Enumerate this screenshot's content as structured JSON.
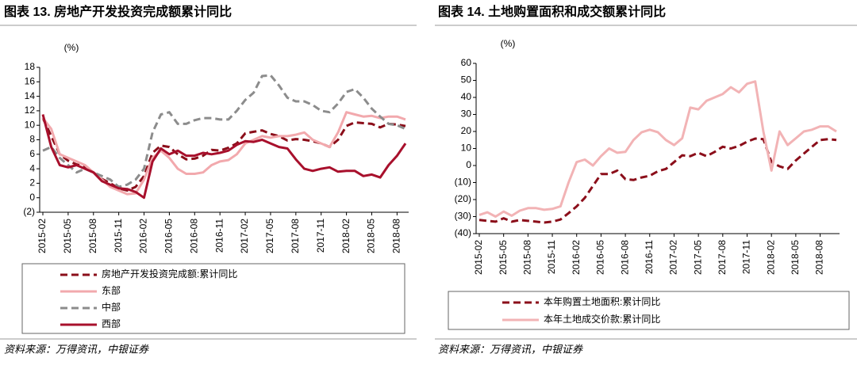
{
  "chart_data": [
    {
      "type": "line",
      "title": "图表 13. 房地产开发投资完成额累计同比",
      "ylabel": "(%)",
      "source": "资料来源：万得资讯，中银证券",
      "categories": [
        "2015-02",
        null,
        null,
        "2015-05",
        null,
        null,
        "2015-08",
        null,
        null,
        "2015-11",
        null,
        null,
        "2016-02",
        null,
        null,
        "2016-05",
        null,
        null,
        "2016-08",
        null,
        null,
        "2016-11",
        null,
        null,
        "2017-02",
        null,
        null,
        "2017-05",
        null,
        null,
        "2017-08",
        null,
        null,
        "2017-11",
        null,
        null,
        "2018-02",
        null,
        null,
        "2018-05",
        null,
        null,
        "2018-08",
        null
      ],
      "ylim": [
        -2,
        18
      ],
      "yticks": [
        {
          "value": -2,
          "label": "(2)"
        },
        0,
        2,
        4,
        6,
        8,
        10,
        12,
        14,
        16,
        18
      ],
      "negative_tick_color": "#e0201b",
      "legend": "bottom",
      "series": [
        {
          "name": "房地产开发投资完成额:累计同比",
          "color": "#8b0e1a",
          "dash": true,
          "values": [
            11,
            8.5,
            6,
            5.1,
            4.6,
            4.3,
            3.5,
            2.6,
            2,
            1.3,
            1,
            1.5,
            3,
            6.2,
            7.2,
            7,
            6,
            5.3,
            5.4,
            5.8,
            6.6,
            6.5,
            6.9,
            7.5,
            8.9,
            9.1,
            9.3,
            8.8,
            8.5,
            7.9,
            8.1,
            8,
            7.8,
            7.5,
            7,
            8,
            9.9,
            10.4,
            10.3,
            10.2,
            9.7,
            10.2,
            10.1,
            9.9
          ]
        },
        {
          "name": "东部",
          "color": "#f2a9ad",
          "dash": false,
          "values": [
            11,
            9.5,
            6,
            5.5,
            5,
            4.5,
            3.5,
            2.5,
            1.5,
            1,
            0.5,
            0.6,
            2.5,
            5.5,
            6.5,
            5.5,
            4,
            3.3,
            3.3,
            3.5,
            4.5,
            5,
            5.2,
            6,
            7.5,
            8,
            8.5,
            8.3,
            8.5,
            8.5,
            8.7,
            9,
            8,
            7.5,
            7,
            9,
            11.8,
            11.5,
            11.2,
            11.3,
            11,
            11.2,
            11.2,
            10.8
          ]
        },
        {
          "name": "中部",
          "color": "#8c8c8c",
          "dash": true,
          "values": [
            6.5,
            7,
            5.5,
            4.5,
            3.5,
            4,
            3.5,
            3,
            2.5,
            1.5,
            1.8,
            2.5,
            4,
            9,
            11.5,
            11.8,
            10.2,
            10.2,
            10.7,
            11,
            11,
            10.8,
            10.8,
            12,
            13.5,
            14.5,
            16.8,
            16.9,
            15.5,
            13.8,
            13.3,
            13.3,
            12.8,
            12,
            11.8,
            13,
            14.6,
            15,
            13.8,
            12.3,
            11.2,
            10.2,
            10,
            9.5
          ]
        },
        {
          "name": "西部",
          "color": "#a8102c",
          "dash": false,
          "values": [
            11.5,
            7,
            4.5,
            4.2,
            4.5,
            4,
            3.5,
            2.3,
            1.8,
            1.3,
            1.2,
            0.8,
            0,
            5,
            6.8,
            6,
            6.5,
            5.8,
            5.8,
            6.2,
            6,
            6.2,
            6.5,
            7.3,
            7.8,
            7.7,
            8,
            7.5,
            7,
            6.8,
            5.3,
            4,
            3.7,
            4,
            4.2,
            3.6,
            3.7,
            3.7,
            3,
            3.2,
            2.8,
            4.5,
            5.8,
            7.5
          ]
        }
      ]
    },
    {
      "type": "line",
      "title": "图表 14. 土地购置面积和成交额累计同比",
      "ylabel": "(%)",
      "source": "资料来源：万得资讯，中银证券",
      "categories": [
        "2015-02",
        null,
        null,
        "2015-05",
        null,
        null,
        "2015-08",
        null,
        null,
        "2015-11",
        null,
        null,
        "2016-02",
        null,
        null,
        "2016-05",
        null,
        null,
        "2016-08",
        null,
        null,
        "2016-11",
        null,
        null,
        "2017-02",
        null,
        null,
        "2017-05",
        null,
        null,
        "2017-08",
        null,
        null,
        "2017-11",
        null,
        null,
        "2018-02",
        null,
        null,
        "2018-05",
        null,
        null,
        "2018-08",
        null,
        null
      ],
      "ylim": [
        -40,
        60
      ],
      "yticks": [
        {
          "value": -40,
          "label": "(40)"
        },
        {
          "value": -30,
          "label": "(30)"
        },
        {
          "value": -20,
          "label": "(20)"
        },
        {
          "value": -10,
          "label": "(10)"
        },
        0,
        10,
        20,
        30,
        40,
        50,
        60
      ],
      "negative_tick_color": "#e0201b",
      "legend": "bottom",
      "series": [
        {
          "name": "本年购置土地面积:累计同比",
          "color": "#8b0e1a",
          "dash": true,
          "values": [
            -32,
            -32.5,
            -33,
            -31,
            -33,
            -32,
            -32.5,
            -33,
            -33.5,
            -33,
            -31.7,
            -28,
            -24,
            -19,
            -12,
            -5,
            -5,
            -3,
            -8,
            -8.5,
            -7,
            -6,
            -3.4,
            -2,
            2,
            6,
            5.5,
            7.5,
            5.5,
            8,
            11,
            10,
            11.5,
            14,
            15.8,
            15.5,
            2,
            -0.5,
            -2,
            3,
            7,
            11,
            15,
            15.5,
            15
          ]
        },
        {
          "name": "本年土地成交价款:累计同比",
          "color": "#f2b3b5",
          "dash": false,
          "values": [
            -29,
            -27.5,
            -30,
            -27,
            -29.5,
            -26.5,
            -25,
            -25,
            -26,
            -25.5,
            -24,
            -10,
            2,
            3.5,
            0,
            5.5,
            10,
            7.5,
            8,
            15,
            19.5,
            21,
            19.6,
            15,
            12,
            16,
            34,
            33,
            38,
            40,
            42,
            46,
            43,
            48,
            49.4,
            20,
            -3,
            20,
            12,
            16,
            20,
            21,
            23,
            23,
            20
          ]
        }
      ]
    }
  ]
}
